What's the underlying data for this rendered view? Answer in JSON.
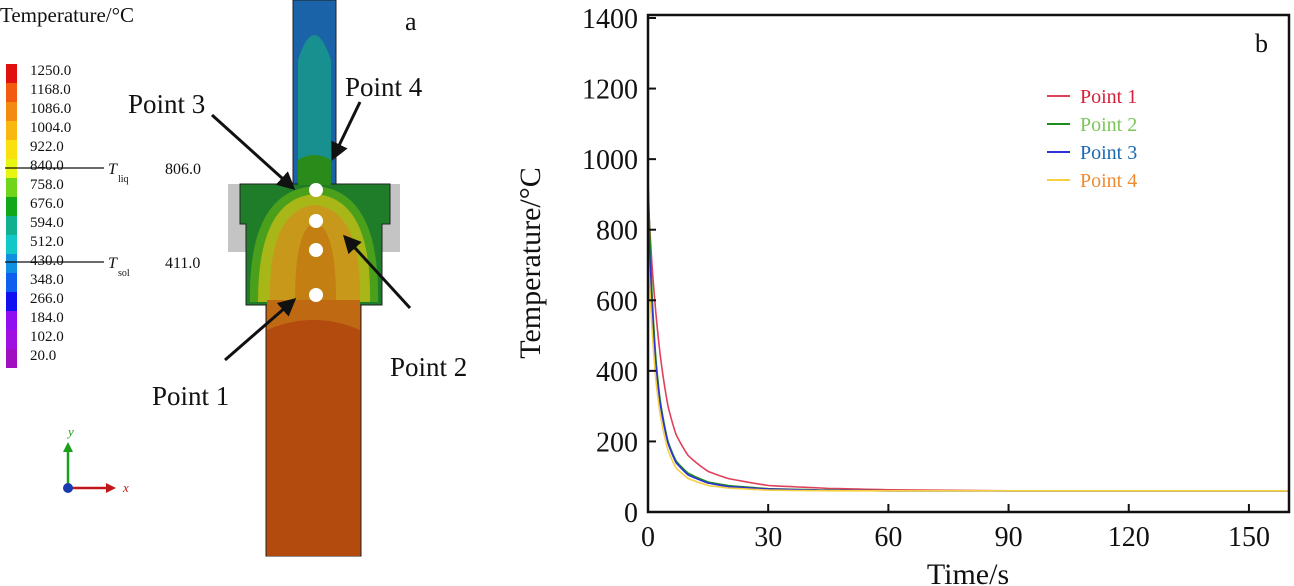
{
  "panel_a": {
    "label": "a",
    "legend_title": "Temperature/°C",
    "legend_values": [
      "1250.0",
      "1168.0",
      "1086.0",
      "1004.0",
      "922.0",
      "840.0",
      "758.0",
      "676.0",
      "594.0",
      "512.0",
      "430.0",
      "348.0",
      "266.0",
      "184.0",
      "102.0",
      "20.0"
    ],
    "legend_colors": [
      "#e01010",
      "#f25a10",
      "#f58a10",
      "#f8b810",
      "#fbe010",
      "#e8f510",
      "#6fd41a",
      "#10a818",
      "#10b090",
      "#10c8c8",
      "#1090e0",
      "#1060f0",
      "#1010f0",
      "#9010f0",
      "#a010e0",
      "#a010c0"
    ],
    "liquidus": {
      "symbol": "T",
      "sub": "liq",
      "value": "806.0"
    },
    "solidus": {
      "symbol": "T",
      "sub": "sol",
      "value": "411.0"
    },
    "points": [
      "Point 1",
      "Point 2",
      "Point 3",
      "Point 4"
    ],
    "axis_x": "x",
    "axis_y": "y"
  },
  "chart_data": {
    "type": "line",
    "panel_label": "b",
    "xlabel": "Time/s",
    "ylabel": "Temperature/°C",
    "xlim": [
      0,
      160
    ],
    "ylim": [
      0,
      1400
    ],
    "xticks": [
      0,
      30,
      60,
      90,
      120,
      150
    ],
    "yticks": [
      0,
      200,
      400,
      600,
      800,
      1000,
      1200,
      1400
    ],
    "legend_position": "top-right",
    "series": [
      {
        "name": "Point 1",
        "color": "#e0405a",
        "label_color": "#d81e3a",
        "x": [
          0,
          1,
          2,
          3,
          5,
          7,
          10,
          15,
          20,
          30,
          45,
          60,
          90,
          160
        ],
        "y": [
          900,
          700,
          560,
          450,
          300,
          220,
          160,
          115,
          95,
          75,
          67,
          63,
          60,
          60
        ]
      },
      {
        "name": "Point 2",
        "color": "#1c8a1c",
        "label_color": "#7cc55a",
        "x": [
          0,
          1,
          2,
          3,
          5,
          7,
          10,
          15,
          20,
          30,
          45,
          60,
          90,
          160
        ],
        "y": [
          950,
          620,
          430,
          320,
          200,
          145,
          110,
          85,
          75,
          66,
          62,
          60,
          60,
          60
        ]
      },
      {
        "name": "Point 3",
        "color": "#3030d8",
        "label_color": "#1a6ab0",
        "x": [
          0,
          1,
          2,
          3,
          5,
          7,
          10,
          15,
          20,
          30,
          45,
          60,
          90,
          160
        ],
        "y": [
          850,
          580,
          410,
          310,
          195,
          140,
          105,
          82,
          72,
          65,
          61,
          60,
          60,
          60
        ]
      },
      {
        "name": "Point 4",
        "color": "#f5d040",
        "label_color": "#f08a30",
        "x": [
          0,
          1,
          2,
          3,
          5,
          7,
          10,
          15,
          20,
          30,
          45,
          60,
          90,
          160
        ],
        "y": [
          750,
          520,
          370,
          280,
          175,
          125,
          95,
          75,
          68,
          62,
          60,
          60,
          60,
          60
        ]
      }
    ]
  }
}
